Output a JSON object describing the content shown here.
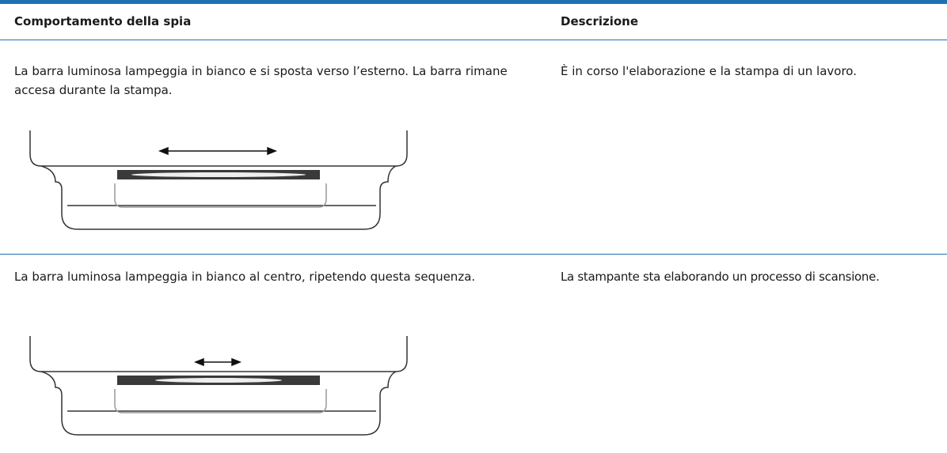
{
  "table": {
    "headers": [
      "Comportamento della spia",
      "Descrizione"
    ],
    "rows": [
      [
        "La barra luminosa lampeggia in bianco e si sposta verso l’esterno. La barra rimane accesa durante la stampa.",
        "È in corso l'elaborazione e la stampa di un lavoro."
      ],
      [
        "La barra luminosa lampeggia in bianco al centro, ripetendo questa sequenza.",
        "La stampante sta elaborando un processo di scansione."
      ]
    ]
  }
}
